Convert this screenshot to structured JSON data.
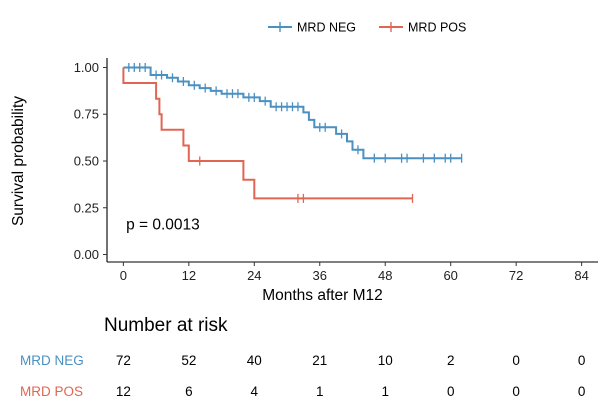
{
  "chart_data": {
    "type": "line",
    "step": true,
    "xlabel": "Months after M12",
    "ylabel": "Survival probability",
    "x_ticks": [
      0,
      12,
      24,
      36,
      48,
      60,
      72,
      84
    ],
    "y_ticks": [
      "0.00",
      "0.25",
      "0.50",
      "0.75",
      "1.00"
    ],
    "xlim": [
      -3,
      87
    ],
    "ylim": [
      -0.04,
      1.04
    ],
    "grid": false,
    "legend_position": "top",
    "annotation": "p = 0.0013",
    "series": [
      {
        "name": "MRD NEG",
        "color": "#4a90c2",
        "points": [
          [
            0,
            1.0
          ],
          [
            5,
            1.0
          ],
          [
            5,
            0.96
          ],
          [
            8,
            0.96
          ],
          [
            8,
            0.945
          ],
          [
            10,
            0.945
          ],
          [
            10,
            0.925
          ],
          [
            12,
            0.925
          ],
          [
            12,
            0.905
          ],
          [
            14,
            0.905
          ],
          [
            14,
            0.89
          ],
          [
            16,
            0.89
          ],
          [
            16,
            0.875
          ],
          [
            18,
            0.875
          ],
          [
            18,
            0.86
          ],
          [
            22,
            0.86
          ],
          [
            22,
            0.84
          ],
          [
            25,
            0.84
          ],
          [
            25,
            0.82
          ],
          [
            27,
            0.82
          ],
          [
            27,
            0.79
          ],
          [
            33,
            0.79
          ],
          [
            33,
            0.76
          ],
          [
            34,
            0.76
          ],
          [
            34,
            0.72
          ],
          [
            35,
            0.72
          ],
          [
            35,
            0.68
          ],
          [
            39,
            0.68
          ],
          [
            39,
            0.645
          ],
          [
            41,
            0.645
          ],
          [
            41,
            0.605
          ],
          [
            42,
            0.605
          ],
          [
            42,
            0.56
          ],
          [
            44,
            0.56
          ],
          [
            44,
            0.515
          ],
          [
            62,
            0.515
          ]
        ],
        "censors": [
          [
            1,
            1.0
          ],
          [
            2,
            1.0
          ],
          [
            3,
            1.0
          ],
          [
            4,
            1.0
          ],
          [
            6,
            0.96
          ],
          [
            7,
            0.96
          ],
          [
            9,
            0.945
          ],
          [
            11,
            0.925
          ],
          [
            13,
            0.905
          ],
          [
            15,
            0.89
          ],
          [
            17,
            0.875
          ],
          [
            19,
            0.86
          ],
          [
            20,
            0.86
          ],
          [
            21,
            0.86
          ],
          [
            23,
            0.84
          ],
          [
            24,
            0.84
          ],
          [
            26,
            0.82
          ],
          [
            28,
            0.79
          ],
          [
            29,
            0.79
          ],
          [
            30,
            0.79
          ],
          [
            31,
            0.79
          ],
          [
            32,
            0.79
          ],
          [
            36,
            0.68
          ],
          [
            37,
            0.68
          ],
          [
            40,
            0.645
          ],
          [
            43,
            0.56
          ],
          [
            46,
            0.515
          ],
          [
            48,
            0.515
          ],
          [
            51,
            0.515
          ],
          [
            52,
            0.515
          ],
          [
            55,
            0.515
          ],
          [
            57,
            0.515
          ],
          [
            59,
            0.515
          ],
          [
            60,
            0.515
          ],
          [
            62,
            0.515
          ]
        ]
      },
      {
        "name": "MRD POS",
        "color": "#e06653",
        "points": [
          [
            0,
            1.0
          ],
          [
            0,
            0.917
          ],
          [
            6,
            0.917
          ],
          [
            6,
            0.833
          ],
          [
            6.6,
            0.833
          ],
          [
            6.6,
            0.75
          ],
          [
            7,
            0.75
          ],
          [
            7,
            0.667
          ],
          [
            11,
            0.667
          ],
          [
            11,
            0.583
          ],
          [
            12,
            0.583
          ],
          [
            12,
            0.5
          ],
          [
            22,
            0.5
          ],
          [
            22,
            0.4
          ],
          [
            24,
            0.4
          ],
          [
            24,
            0.3
          ],
          [
            53,
            0.3
          ]
        ],
        "censors": [
          [
            14,
            0.5
          ],
          [
            32,
            0.3
          ],
          [
            33,
            0.3
          ],
          [
            53,
            0.3
          ]
        ]
      }
    ]
  },
  "risk_table": {
    "title": "Number at risk",
    "times": [
      0,
      12,
      24,
      36,
      48,
      60,
      72,
      84
    ],
    "rows": [
      {
        "label": "MRD NEG",
        "color": "#4a90c2",
        "values": [
          "72",
          "52",
          "40",
          "21",
          "10",
          "2",
          "0",
          "0"
        ]
      },
      {
        "label": "MRD POS",
        "color": "#e06653",
        "values": [
          "12",
          "6",
          "4",
          "1",
          "1",
          "0",
          "0",
          "0"
        ]
      }
    ]
  }
}
